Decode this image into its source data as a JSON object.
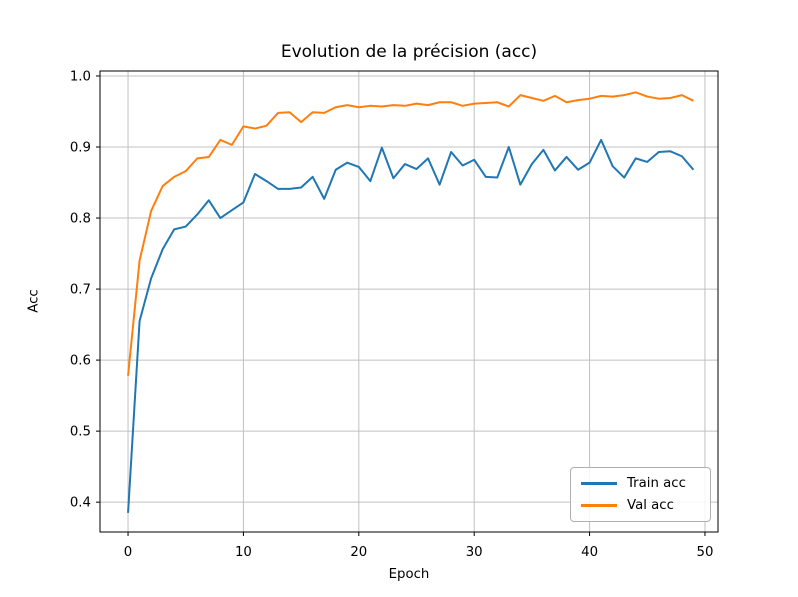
{
  "figure": {
    "background": "#ffffff"
  },
  "style": {
    "grid_color": "#c0c0c0",
    "spine_color": "#000000",
    "tick_color": "#000000",
    "text_color": "#000000",
    "line_width": 2
  },
  "chart_data": {
    "type": "line",
    "title": "Evolution de la précision (acc)",
    "xlabel": "Epoch",
    "ylabel": "Acc",
    "grid": true,
    "legend_position": "lower right",
    "xlim": [
      -2.43,
      51.13
    ],
    "ylim": [
      0.358,
      1.007
    ],
    "xticks": [
      0,
      10,
      20,
      30,
      40,
      50
    ],
    "xtick_labels": [
      "0",
      "10",
      "20",
      "30",
      "40",
      "50"
    ],
    "yticks": [
      0.4,
      0.5,
      0.6,
      0.7,
      0.8,
      0.9,
      1.0
    ],
    "ytick_labels": [
      "0.4",
      "0.5",
      "0.6",
      "0.7",
      "0.8",
      "0.9",
      "1.0"
    ],
    "x": [
      0,
      1,
      2,
      3,
      4,
      5,
      6,
      7,
      8,
      9,
      10,
      11,
      12,
      13,
      14,
      15,
      16,
      17,
      18,
      19,
      20,
      21,
      22,
      23,
      24,
      25,
      26,
      27,
      28,
      29,
      30,
      31,
      32,
      33,
      34,
      35,
      36,
      37,
      38,
      39,
      40,
      41,
      42,
      43,
      44,
      45,
      46,
      47,
      48,
      49
    ],
    "series": [
      {
        "name": "Train acc",
        "color": "#1f77b4",
        "values": [
          0.385,
          0.655,
          0.715,
          0.756,
          0.784,
          0.788,
          0.805,
          0.825,
          0.8,
          0.811,
          0.822,
          0.862,
          0.852,
          0.841,
          0.841,
          0.843,
          0.858,
          0.827,
          0.868,
          0.878,
          0.872,
          0.852,
          0.899,
          0.856,
          0.876,
          0.869,
          0.884,
          0.847,
          0.893,
          0.874,
          0.882,
          0.858,
          0.857,
          0.9,
          0.847,
          0.876,
          0.896,
          0.867,
          0.886,
          0.868,
          0.878,
          0.91,
          0.873,
          0.857,
          0.884,
          0.879,
          0.893,
          0.894,
          0.887,
          0.868
        ]
      },
      {
        "name": "Val acc",
        "color": "#ff7f0e",
        "values": [
          0.578,
          0.74,
          0.81,
          0.845,
          0.858,
          0.866,
          0.884,
          0.886,
          0.91,
          0.903,
          0.929,
          0.926,
          0.93,
          0.948,
          0.949,
          0.935,
          0.949,
          0.948,
          0.956,
          0.959,
          0.956,
          0.958,
          0.957,
          0.959,
          0.958,
          0.961,
          0.959,
          0.963,
          0.963,
          0.958,
          0.961,
          0.962,
          0.963,
          0.957,
          0.973,
          0.969,
          0.965,
          0.972,
          0.963,
          0.966,
          0.968,
          0.972,
          0.971,
          0.973,
          0.977,
          0.971,
          0.968,
          0.969,
          0.973,
          0.965
        ]
      }
    ]
  }
}
